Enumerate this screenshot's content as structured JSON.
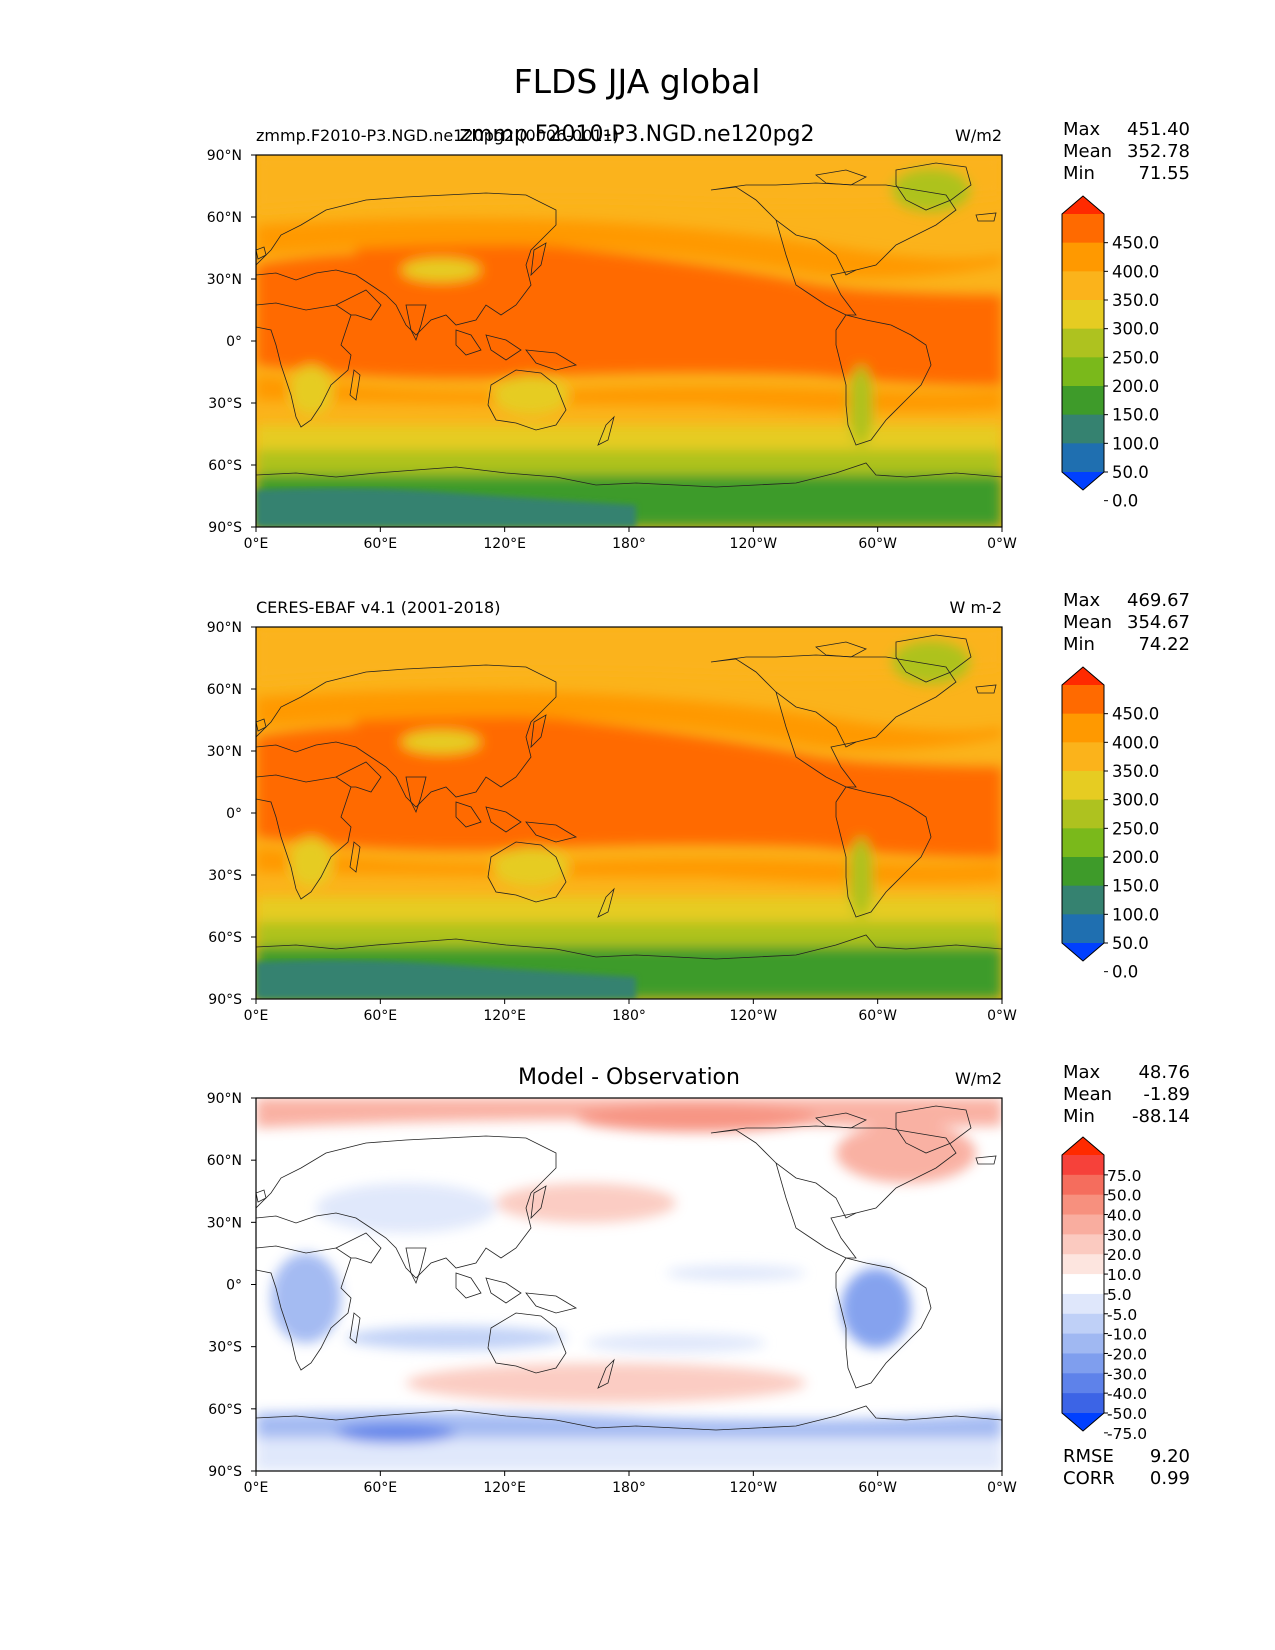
{
  "figure": {
    "title": "FLDS JJA global",
    "lon_ticks": [
      "0°E",
      "60°E",
      "120°E",
      "180°",
      "120°W",
      "60°W",
      "0°W"
    ],
    "lat_ticks": [
      "90°N",
      "60°N",
      "30°N",
      "0°",
      "30°S",
      "60°S",
      "90°S"
    ]
  },
  "panels": [
    {
      "id": "test",
      "title_left": "zmmp.F2010-P3.NGD.ne120pg2 (0006-0011)",
      "title_center": "zmmp.F2010-P3.NGD.ne120pg2",
      "title_right": "W/m2",
      "stats": [
        {
          "label": "Max",
          "value": "451.40"
        },
        {
          "label": "Mean",
          "value": "352.78"
        },
        {
          "label": "Min",
          "value": "71.55"
        }
      ],
      "colorbar": {
        "labels": [
          "450.0",
          "400.0",
          "350.0",
          "300.0",
          "250.0",
          "200.0",
          "150.0",
          "100.0",
          "50.0",
          "0.0"
        ],
        "colors": [
          "#ff2a00",
          "#ff6a00",
          "#ff9900",
          "#fbb31b",
          "#e6cc22",
          "#aec21f",
          "#7ab91b",
          "#3e9b2a",
          "#358270",
          "#1f6fb0",
          "#0040ff"
        ]
      }
    },
    {
      "id": "ref",
      "title_left": "CERES-EBAF v4.1 (2001-2018)",
      "title_center": "",
      "title_right": "W m-2",
      "stats": [
        {
          "label": "Max",
          "value": "469.67"
        },
        {
          "label": "Mean",
          "value": "354.67"
        },
        {
          "label": "Min",
          "value": "74.22"
        }
      ],
      "colorbar": {
        "labels": [
          "450.0",
          "400.0",
          "350.0",
          "300.0",
          "250.0",
          "200.0",
          "150.0",
          "100.0",
          "50.0",
          "0.0"
        ],
        "colors": [
          "#ff2a00",
          "#ff6a00",
          "#ff9900",
          "#fbb31b",
          "#e6cc22",
          "#aec21f",
          "#7ab91b",
          "#3e9b2a",
          "#358270",
          "#1f6fb0",
          "#0040ff"
        ]
      }
    },
    {
      "id": "diff",
      "title_left": "",
      "title_center": "Model - Observation",
      "title_right": "W/m2",
      "stats": [
        {
          "label": "Max",
          "value": "48.76"
        },
        {
          "label": "Mean",
          "value": "-1.89"
        },
        {
          "label": "Min",
          "value": "-88.14"
        }
      ],
      "extra_stats": [
        {
          "label": "RMSE",
          "value": "9.20"
        },
        {
          "label": "CORR",
          "value": "0.99"
        }
      ],
      "colorbar": {
        "labels": [
          "75.0",
          "50.0",
          "40.0",
          "30.0",
          "20.0",
          "10.0",
          "5.0",
          "-5.0",
          "-10.0",
          "-20.0",
          "-30.0",
          "-40.0",
          "-50.0",
          "-75.0"
        ],
        "colors": [
          "#ff2a00",
          "#f6413a",
          "#f56d5d",
          "#f7907e",
          "#f9ad9f",
          "#fbcac0",
          "#fde5df",
          "#ffffff",
          "#dfe7fb",
          "#bfd0f7",
          "#a0b8f2",
          "#7f9eee",
          "#5e82ea",
          "#3c64e6",
          "#0040ff"
        ]
      }
    }
  ],
  "chart_data": [
    {
      "type": "heatmap",
      "title": "zmmp.F2010-P3.NGD.ne120pg2",
      "variable": "FLDS",
      "season": "JJA",
      "units": "W/m2",
      "levels": [
        0,
        50,
        100,
        150,
        200,
        250,
        300,
        350,
        400,
        450
      ],
      "xlim": [
        0,
        360
      ],
      "ylim": [
        -90,
        90
      ],
      "max": 451.4,
      "mean": 352.78,
      "min": 71.55
    },
    {
      "type": "heatmap",
      "title": "CERES-EBAF v4.1 (2001-2018)",
      "variable": "FLDS",
      "season": "JJA",
      "units": "W m-2",
      "levels": [
        0,
        50,
        100,
        150,
        200,
        250,
        300,
        350,
        400,
        450
      ],
      "xlim": [
        0,
        360
      ],
      "ylim": [
        -90,
        90
      ],
      "max": 469.67,
      "mean": 354.67,
      "min": 74.22
    },
    {
      "type": "heatmap",
      "title": "Model - Observation",
      "units": "W/m2",
      "levels": [
        -75,
        -50,
        -40,
        -30,
        -20,
        -10,
        -5,
        5,
        10,
        20,
        30,
        40,
        50,
        75
      ],
      "xlim": [
        0,
        360
      ],
      "ylim": [
        -90,
        90
      ],
      "max": 48.76,
      "mean": -1.89,
      "min": -88.14,
      "rmse": 9.2,
      "corr": 0.99
    }
  ]
}
